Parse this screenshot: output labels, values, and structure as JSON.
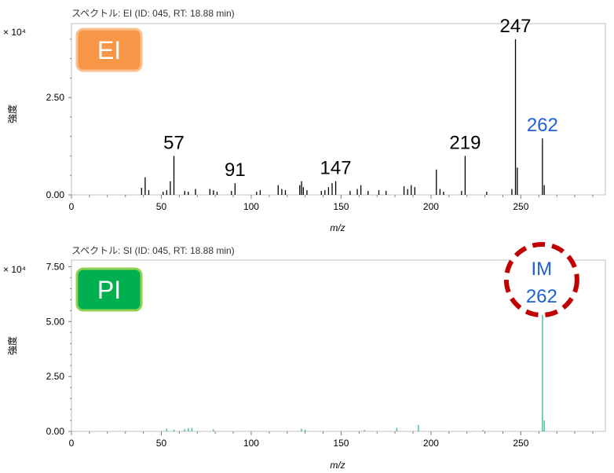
{
  "chart_data": [
    {
      "type": "bar",
      "title": "スペクトル: EI (ID: 045, RT: 18.88 min)",
      "xlabel": "m/z",
      "ylabel": "強度",
      "y_multiplier": "× 10⁴",
      "xlim": [
        0,
        297
      ],
      "ylim": [
        0,
        4.4
      ],
      "x_ticks": [
        0,
        50,
        100,
        150,
        200,
        250
      ],
      "y_ticks": [
        0,
        2.5
      ],
      "y_tick_labels": [
        "0.00",
        "2.50"
      ],
      "grid": false,
      "badge": {
        "label": "EI",
        "color": "#f79646",
        "border": "#fac090"
      },
      "bar_color": "#000000",
      "series": [
        {
          "x": [
            39,
            41,
            43,
            51,
            53,
            55,
            57,
            63,
            65,
            69,
            77,
            79,
            81,
            89,
            91,
            103,
            105,
            115,
            117,
            119,
            127,
            128,
            129,
            131,
            139,
            141,
            143,
            145,
            147,
            155,
            159,
            161,
            165,
            171,
            175,
            185,
            187,
            189,
            191,
            203,
            205,
            207,
            217,
            219,
            231,
            245,
            247,
            248,
            262,
            263
          ],
          "y": [
            0.18,
            0.45,
            0.12,
            0.08,
            0.12,
            0.35,
            1.0,
            0.1,
            0.08,
            0.15,
            0.15,
            0.12,
            0.08,
            0.1,
            0.3,
            0.08,
            0.12,
            0.25,
            0.15,
            0.12,
            0.25,
            0.35,
            0.2,
            0.12,
            0.1,
            0.12,
            0.2,
            0.3,
            0.35,
            0.1,
            0.15,
            0.25,
            0.1,
            0.12,
            0.1,
            0.22,
            0.15,
            0.25,
            0.2,
            0.65,
            0.15,
            0.08,
            0.1,
            1.0,
            0.08,
            0.15,
            4.0,
            0.7,
            1.45,
            0.25
          ]
        }
      ],
      "annotations": [
        {
          "x": 57,
          "y": 1.0,
          "label": "57",
          "color": "#000000"
        },
        {
          "x": 91,
          "y": 0.3,
          "label": "91",
          "color": "#000000"
        },
        {
          "x": 147,
          "y": 0.35,
          "label": "147",
          "color": "#000000"
        },
        {
          "x": 219,
          "y": 1.0,
          "label": "219",
          "color": "#000000"
        },
        {
          "x": 247,
          "y": 4.0,
          "label": "247",
          "color": "#000000"
        },
        {
          "x": 262,
          "y": 1.45,
          "label": "262",
          "color": "#1f5fd6"
        }
      ]
    },
    {
      "type": "bar",
      "title": "スペクトル: SI (ID: 045, RT: 18.88 min)",
      "xlabel": "m/z",
      "ylabel": "強度",
      "y_multiplier": "× 10⁴",
      "xlim": [
        0,
        297
      ],
      "ylim": [
        0,
        7.8
      ],
      "x_ticks": [
        0,
        50,
        100,
        150,
        200,
        250
      ],
      "y_ticks": [
        0,
        2.5,
        5.0,
        7.5
      ],
      "y_tick_labels": [
        "0.00",
        "2.50",
        "5.00",
        "7.50"
      ],
      "grid": false,
      "badge": {
        "label": "PI",
        "color": "#00b050",
        "border": "#92d050"
      },
      "bar_color": "#2bbf8a",
      "series": [
        {
          "x": [
            53,
            57,
            63,
            65,
            67,
            79,
            128,
            130,
            163,
            181,
            193,
            229,
            262,
            263
          ],
          "y": [
            0.12,
            0.08,
            0.1,
            0.15,
            0.15,
            0.1,
            0.12,
            0.08,
            0.06,
            0.15,
            0.3,
            0.06,
            5.4,
            0.5
          ]
        }
      ],
      "annotations": [
        {
          "x": 262,
          "label_lines": [
            "IM",
            "262"
          ],
          "color": "#1f5fd6",
          "ring_color": "#c00000"
        }
      ]
    }
  ]
}
